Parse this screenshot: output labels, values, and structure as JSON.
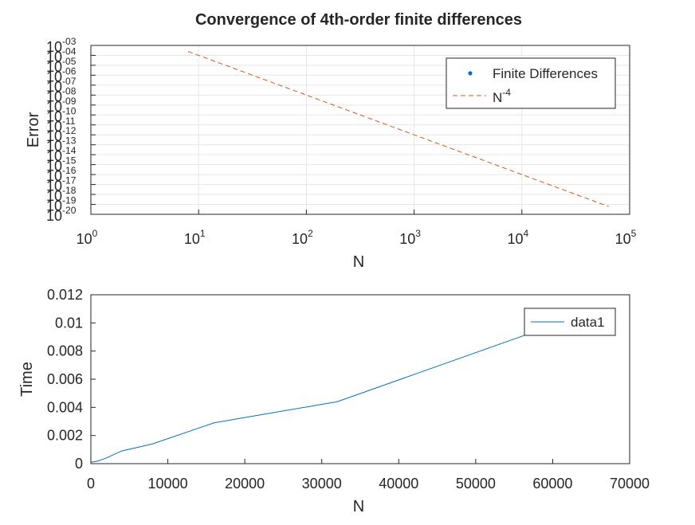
{
  "chart_data": [
    {
      "type": "line",
      "title": "Convergence of 4th-order finite differences",
      "xlabel": "N",
      "ylabel": "Error",
      "xscale": "log",
      "yscale": "log",
      "xlim": [
        1,
        100000
      ],
      "ylim": [
        1e-20,
        0.001
      ],
      "grid": true,
      "legend_position": "top-right",
      "x_tick_base": "10",
      "x_tick_exponents": [
        "0",
        "1",
        "2",
        "3",
        "4",
        "5"
      ],
      "y_tick_base": "10",
      "y_tick_exponents": [
        "-03",
        "-04",
        "-05",
        "-06",
        "-07",
        "-08",
        "-09",
        "-10",
        "-11",
        "-12",
        "-13",
        "-14",
        "-15",
        "-16",
        "-17",
        "-18",
        "-19",
        "-20"
      ],
      "series": [
        {
          "name": "Finite Differences",
          "style": "dots",
          "color": "#0072bd",
          "x": [],
          "y": []
        },
        {
          "name": "N",
          "name_superscript": "-4",
          "style": "dashed",
          "color": "#d95319",
          "x": [
            8,
            64000
          ],
          "y": [
            0.000244,
            6e-20
          ]
        }
      ]
    },
    {
      "type": "line",
      "title": "",
      "xlabel": "N",
      "ylabel": "Time",
      "xlim": [
        0,
        70000
      ],
      "ylim": [
        0,
        0.012
      ],
      "grid": false,
      "legend_position": "top-right",
      "x_ticks": [
        "0",
        "10000",
        "20000",
        "30000",
        "40000",
        "50000",
        "60000",
        "70000"
      ],
      "y_ticks": [
        "0",
        "0.002",
        "0.004",
        "0.006",
        "0.008",
        "0.01",
        "0.012"
      ],
      "series": [
        {
          "name": "data1",
          "color": "#0072bd",
          "x": [
            0,
            1000,
            2000,
            4000,
            8000,
            16000,
            32000,
            64000
          ],
          "y": [
            0.0001,
            0.0002,
            0.0004,
            0.0009,
            0.0014,
            0.0029,
            0.0044,
            0.0106
          ]
        }
      ]
    }
  ]
}
